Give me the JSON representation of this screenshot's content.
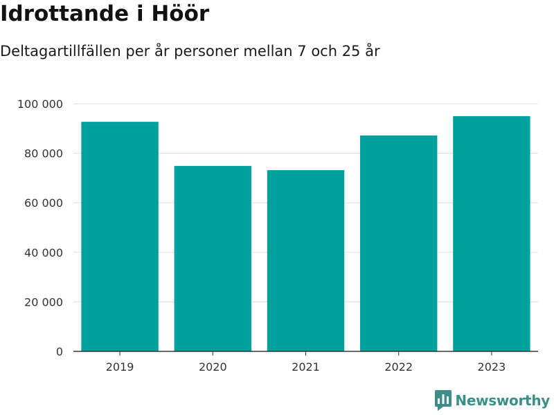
{
  "title": "Idrottande i Höör",
  "subtitle": "Deltagartillfällen per år personer mellan 7 och 25 år",
  "brand": {
    "name": "Newsworthy",
    "color": "#3b8f88",
    "icon": "newsworthy-logo-icon"
  },
  "colors": {
    "bar": "#00a19a",
    "grid": "#dddddd",
    "axis": "#333333"
  },
  "chart_data": {
    "type": "bar",
    "title": "Idrottande i Höör",
    "subtitle": "Deltagartillfällen per år personer mellan 7 och 25 år",
    "xlabel": "",
    "ylabel": "",
    "categories": [
      "2019",
      "2020",
      "2021",
      "2022",
      "2023"
    ],
    "values": [
      92700,
      74900,
      73200,
      87200,
      95000
    ],
    "ylim": [
      0,
      100000
    ],
    "yticks": [
      0,
      20000,
      40000,
      60000,
      80000,
      100000
    ],
    "ytick_labels": [
      "0",
      "20 000",
      "40 000",
      "60 000",
      "80 000",
      "100 000"
    ],
    "grid": true,
    "legend": "none"
  }
}
